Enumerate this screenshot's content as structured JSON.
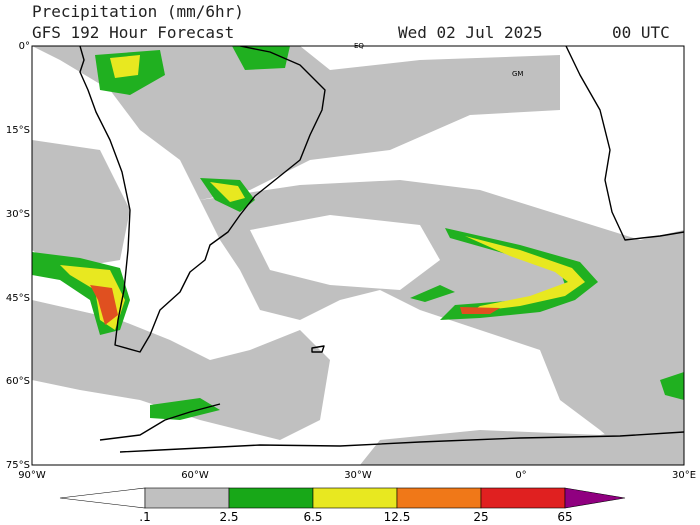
{
  "header": {
    "title": "Precipitation (mm/6hr)",
    "subtitle": "GFS 192 Hour Forecast",
    "valid_date": "Wed 02 Jul 2025",
    "valid_time": "00 UTC"
  },
  "axes": {
    "latitude_labels": [
      "0°",
      "15°S",
      "30°S",
      "45°S",
      "60°S",
      "75°S"
    ],
    "longitude_labels": [
      "90°W",
      "60°W",
      "30°W",
      "0°",
      "30°E"
    ]
  },
  "map_labels": [
    "EQ",
    "GM"
  ],
  "colorbar": {
    "labels": [
      ".1",
      "2.5",
      "6.5",
      "12.5",
      "25",
      "65"
    ]
  }
}
